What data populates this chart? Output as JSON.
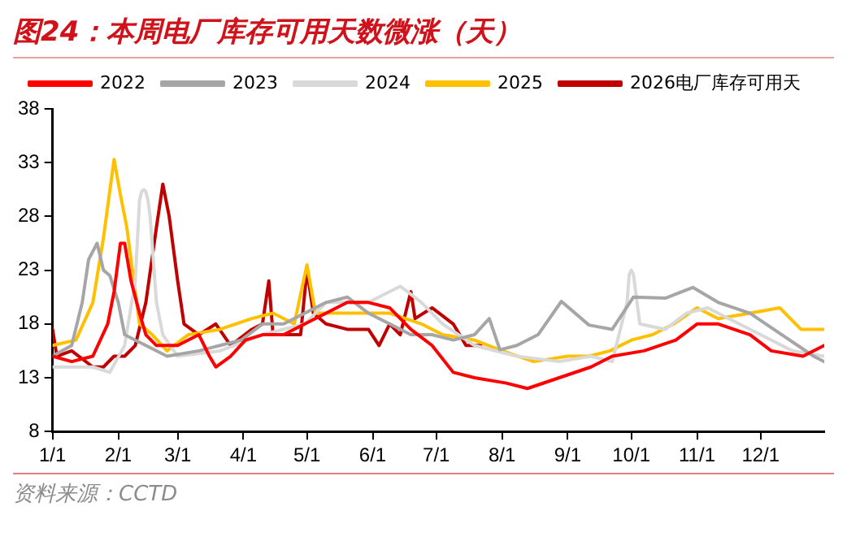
{
  "chart_data": {
    "type": "line",
    "title": "图24：本周电厂库存可用天数微涨（天）",
    "annotations": [
      "资料来源：CCTD"
    ],
    "xlim": [
      "--01-01",
      "--12-31"
    ],
    "xticks": [
      {
        "value": "--01-01",
        "label": "1/1"
      },
      {
        "value": "--02-01",
        "label": "2/1"
      },
      {
        "value": "--03-01",
        "label": "3/1"
      },
      {
        "value": "--04-01",
        "label": "4/1"
      },
      {
        "value": "--05-01",
        "label": "5/1"
      },
      {
        "value": "--06-01",
        "label": "6/1"
      },
      {
        "value": "--07-01",
        "label": "7/1"
      },
      {
        "value": "--08-01",
        "label": "8/1"
      },
      {
        "value": "--09-01",
        "label": "9/1"
      },
      {
        "value": "--10-01",
        "label": "10/1"
      },
      {
        "value": "--11-01",
        "label": "11/1"
      },
      {
        "value": "--12-01",
        "label": "12/1"
      }
    ],
    "ylim": [
      8,
      38
    ],
    "yticks": [
      8,
      13,
      18,
      23,
      28,
      33,
      38
    ],
    "grid": false,
    "legend": "top",
    "marker": "none",
    "line_style": "solid",
    "series": [
      {
        "name": "2022",
        "color": "#ff0000",
        "x": [
          "--01-01",
          "--01-10",
          "--01-20",
          "--01-27",
          "--01-30",
          "--02-02",
          "--02-04",
          "--02-07",
          "--02-11",
          "--02-14",
          "--02-19",
          "--03-01",
          "--03-11",
          "--03-16",
          "--03-19",
          "--03-26",
          "--04-02",
          "--04-10",
          "--04-20",
          "--04-30",
          "--05-10",
          "--05-20",
          "--05-30",
          "--06-09",
          "--06-19",
          "--06-29",
          "--07-09",
          "--07-19",
          "--08-03",
          "--08-13",
          "--08-28",
          "--09-12",
          "--09-22",
          "--10-07",
          "--10-22",
          "--11-01",
          "--11-11",
          "--11-26",
          "--12-06",
          "--12-21",
          "--12-31"
        ],
        "values": [
          15,
          14.5,
          15,
          18,
          21,
          25.5,
          25.5,
          22,
          19,
          17,
          16,
          16,
          17,
          15,
          14,
          15,
          16.5,
          17,
          17,
          18,
          19,
          20,
          20,
          19.5,
          17.5,
          16,
          13.5,
          13,
          12.5,
          12,
          13,
          14,
          15,
          15.5,
          16.5,
          18,
          18,
          17,
          15.5,
          15,
          16
        ]
      },
      {
        "name": "2023",
        "color": "#a6a6a6",
        "x": [
          "--01-01",
          "--01-10",
          "--01-15",
          "--01-18",
          "--01-22",
          "--01-25",
          "--01-28",
          "--02-01",
          "--02-04",
          "--02-09",
          "--02-14",
          "--02-24",
          "--03-11",
          "--03-21",
          "--03-31",
          "--04-10",
          "--04-20",
          "--04-30",
          "--05-10",
          "--05-20",
          "--05-30",
          "--06-09",
          "--06-19",
          "--06-29",
          "--07-09",
          "--07-19",
          "--07-26",
          "--07-31",
          "--08-08",
          "--08-18",
          "--08-29",
          "--09-11",
          "--09-22",
          "--10-02",
          "--10-17",
          "--10-30",
          "--11-11",
          "--11-26",
          "--12-11",
          "--12-26",
          "--12-31"
        ],
        "values": [
          15,
          16,
          20,
          24,
          25.5,
          23,
          22.5,
          20,
          17,
          16.5,
          16,
          15,
          15.5,
          16,
          16.5,
          18,
          18,
          19,
          20,
          20.5,
          19,
          18,
          17,
          17,
          16.5,
          17,
          18.5,
          15.6,
          16,
          17,
          20.1,
          17.9,
          17.5,
          20.5,
          20.4,
          21.4,
          20,
          19,
          17,
          15,
          14.5
        ]
      },
      {
        "name": "2024",
        "color": "#d9d9d9",
        "x": [
          "--01-01",
          "--01-20",
          "--01-28",
          "--02-04",
          "--02-09",
          "--02-11",
          "--02-12",
          "--02-13",
          "--02-14",
          "--02-15",
          "--02-16",
          "--02-19",
          "--02-22",
          "--03-01",
          "--03-21",
          "--04-10",
          "--04-30",
          "--05-10",
          "--05-30",
          "--06-09",
          "--06-14",
          "--06-24",
          "--07-04",
          "--07-19",
          "--08-08",
          "--08-28",
          "--09-12",
          "--09-22",
          "--09-29",
          "--09-30",
          "--10-01",
          "--10-02",
          "--10-05",
          "--10-17",
          "--10-27",
          "--11-06",
          "--11-16",
          "--12-01",
          "--12-16",
          "--12-31"
        ],
        "values": [
          14,
          14,
          13.5,
          16,
          22,
          29.5,
          30.3,
          30.5,
          30.3,
          29.5,
          28,
          20,
          17,
          15,
          15.5,
          17,
          18,
          20,
          20,
          21,
          21.5,
          20,
          18,
          16,
          15,
          14.5,
          15,
          14.5,
          20,
          22.6,
          23,
          22.6,
          18,
          17.5,
          19,
          19.5,
          18.5,
          17,
          15.5,
          15
        ]
      },
      {
        "name": "2025",
        "color": "#ffc000",
        "x": [
          "--01-01",
          "--01-12",
          "--01-20",
          "--01-25",
          "--01-30",
          "--02-02",
          "--02-05",
          "--02-11",
          "--02-17",
          "--02-24",
          "--03-06",
          "--03-21",
          "--04-05",
          "--04-15",
          "--04-25",
          "--05-01",
          "--05-05",
          "--05-20",
          "--06-09",
          "--06-24",
          "--07-04",
          "--07-19",
          "--08-01",
          "--08-16",
          "--09-01",
          "--09-11",
          "--09-21",
          "--10-01",
          "--10-11",
          "--10-21",
          "--11-01",
          "--11-11",
          "--11-26",
          "--12-10",
          "--12-20",
          "--12-31"
        ],
        "values": [
          16,
          16.5,
          20,
          26,
          33.3,
          30,
          27,
          18,
          17,
          15.5,
          17,
          17.5,
          18.5,
          19,
          18,
          23.5,
          19,
          19,
          19,
          18,
          17,
          16.5,
          15.5,
          14.5,
          15,
          15,
          15.5,
          16.5,
          17,
          18,
          19.5,
          18.5,
          19,
          19.5,
          17.5,
          17.5
        ]
      },
      {
        "name": "2026电厂库存可用天",
        "color": "#c00000",
        "x": [
          "--01-01",
          "--01-03",
          "--01-10",
          "--01-20",
          "--01-25",
          "--01-30",
          "--02-04",
          "--02-09",
          "--02-14",
          "--02-19",
          "--02-22",
          "--02-25",
          "--03-01",
          "--03-04",
          "--03-11",
          "--03-19",
          "--03-26",
          "--04-05",
          "--04-10",
          "--04-13",
          "--04-15",
          "--04-20",
          "--04-28",
          "--05-01",
          "--05-04",
          "--05-10",
          "--05-20",
          "--05-30",
          "--06-04",
          "--06-09",
          "--06-14",
          "--06-19",
          "--06-21",
          "--06-29",
          "--07-09",
          "--07-15",
          "--07-22"
        ],
        "values": [
          17.5,
          15,
          15.5,
          14,
          14,
          15,
          15,
          16,
          20,
          27,
          31,
          28,
          22,
          18,
          17,
          18,
          16,
          17.5,
          18,
          22,
          17,
          17,
          17,
          23,
          19,
          18,
          17.5,
          17.5,
          16,
          18,
          17,
          21,
          18.5,
          19.5,
          18,
          16,
          16
        ]
      }
    ]
  }
}
